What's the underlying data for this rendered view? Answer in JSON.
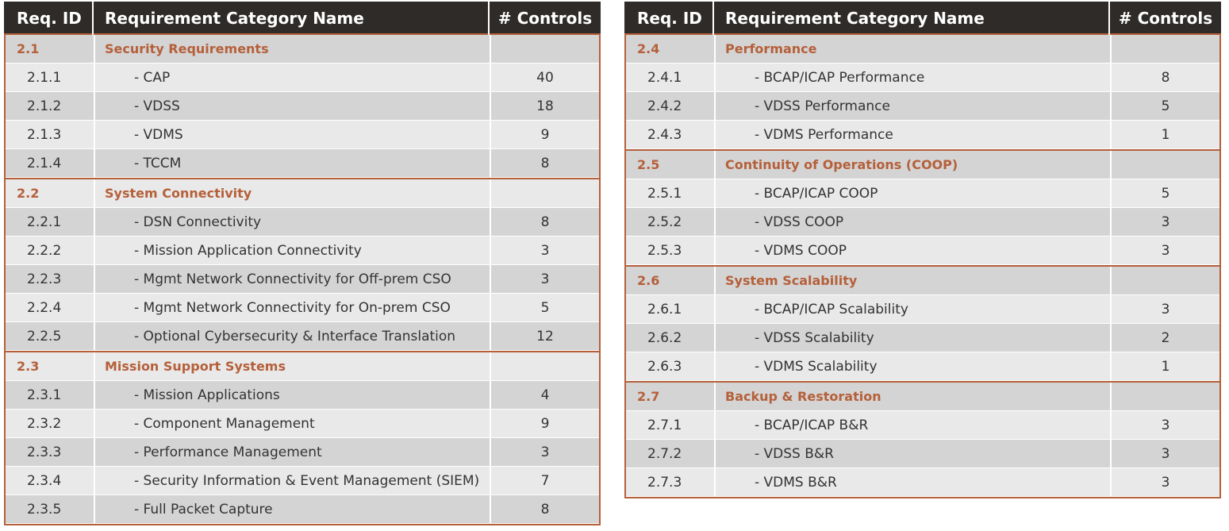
{
  "tables": [
    {
      "header": [
        "Req. ID",
        "Requirement Category Name",
        "# Controls"
      ],
      "groups": [
        {
          "id": "2.1",
          "name": "Security Requirements",
          "items": [
            {
              "id": "2.1.1",
              "name": "- CAP",
              "controls": 40
            },
            {
              "id": "2.1.2",
              "name": "- VDSS",
              "controls": 18
            },
            {
              "id": "2.1.3",
              "name": "- VDMS",
              "controls": 9
            },
            {
              "id": "2.1.4",
              "name": "- TCCM",
              "controls": 8
            }
          ]
        },
        {
          "id": "2.2",
          "name": "System Connectivity",
          "items": [
            {
              "id": "2.2.1",
              "name": "- DSN Connectivity",
              "controls": 8
            },
            {
              "id": "2.2.2",
              "name": "- Mission Application Connectivity",
              "controls": 3
            },
            {
              "id": "2.2.3",
              "name": "- Mgmt Network Connectivity for Off-prem CSO",
              "controls": 3
            },
            {
              "id": "2.2.4",
              "name": "- Mgmt Network Connectivity for On-prem CSO",
              "controls": 5
            },
            {
              "id": "2.2.5",
              "name": "- Optional Cybersecurity & Interface Translation",
              "controls": 12
            }
          ]
        },
        {
          "id": "2.3",
          "name": "Mission Support Systems",
          "items": [
            {
              "id": "2.3.1",
              "name": "- Mission Applications",
              "controls": 4
            },
            {
              "id": "2.3.2",
              "name": "- Component Management",
              "controls": 9
            },
            {
              "id": "2.3.3",
              "name": "- Performance Management",
              "controls": 3
            },
            {
              "id": "2.3.4",
              "name": "- Security Information & Event Management (SIEM)",
              "controls": 7
            },
            {
              "id": "2.3.5",
              "name": "- Full Packet Capture",
              "controls": 8
            }
          ]
        }
      ]
    },
    {
      "header": [
        "Req. ID",
        "Requirement Category Name",
        "# Controls"
      ],
      "groups": [
        {
          "id": "2.4",
          "name": "Performance",
          "items": [
            {
              "id": "2.4.1",
              "name": "- BCAP/ICAP Performance",
              "controls": 8
            },
            {
              "id": "2.4.2",
              "name": "- VDSS Performance",
              "controls": 5
            },
            {
              "id": "2.4.3",
              "name": "- VDMS Performance",
              "controls": 1
            }
          ]
        },
        {
          "id": "2.5",
          "name": "Continuity of Operations (COOP)",
          "items": [
            {
              "id": "2.5.1",
              "name": "- BCAP/ICAP COOP",
              "controls": 5
            },
            {
              "id": "2.5.2",
              "name": "- VDSS COOP",
              "controls": 3
            },
            {
              "id": "2.5.3",
              "name": "- VDMS COOP",
              "controls": 3
            }
          ]
        },
        {
          "id": "2.6",
          "name": "System Scalability",
          "items": [
            {
              "id": "2.6.1",
              "name": "- BCAP/ICAP Scalability",
              "controls": 3
            },
            {
              "id": "2.6.2",
              "name": "- VDSS Scalability",
              "controls": 2
            },
            {
              "id": "2.6.3",
              "name": "- VDMS Scalability",
              "controls": 1
            }
          ]
        },
        {
          "id": "2.7",
          "name": "Backup & Restoration",
          "items": [
            {
              "id": "2.7.1",
              "name": "- BCAP/ICAP B&R",
              "controls": 3
            },
            {
              "id": "2.7.2",
              "name": "- VDSS B&R",
              "controls": 3
            },
            {
              "id": "2.7.3",
              "name": "- VDMS B&R",
              "controls": 3
            }
          ]
        }
      ]
    }
  ]
}
